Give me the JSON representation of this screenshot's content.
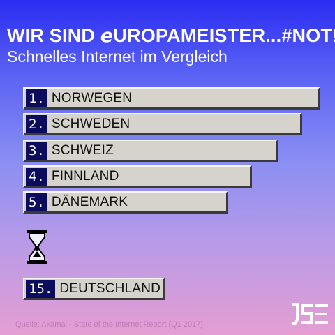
{
  "header": {
    "title_prefix": "WIR SIND ",
    "title_logo_letter": "e",
    "title_suffix": "UROPAMEISTER...#NOT!",
    "subtitle": "Schnelles Internet im Vergleich"
  },
  "chart_data": {
    "type": "bar",
    "orientation": "horizontal",
    "title": "WIR SIND eUROPAMEISTER...#NOT!",
    "subtitle": "Schnelles Internet im Vergleich",
    "rank_labels": [
      "1.",
      "2.",
      "3.",
      "4.",
      "5.",
      "15."
    ],
    "categories": [
      "NORWEGEN",
      "SCHWEDEN",
      "SCHWEIZ",
      "FINNLAND",
      "DÄNEMARK",
      "DEUTSCHLAND"
    ],
    "values": [
      1.0,
      0.94,
      0.86,
      0.77,
      0.69,
      0.48
    ],
    "gap_indicator": "hourglass-icon",
    "grid": false,
    "legend": "none",
    "colors": {
      "bar": "#d6d3cc",
      "rank_box": "#0c0c5e",
      "text": "#111111"
    }
  },
  "footer": {
    "source": "Quelle: Akamai - State of the Internet Report (Q1 2017)",
    "logo_text": "JSE"
  }
}
